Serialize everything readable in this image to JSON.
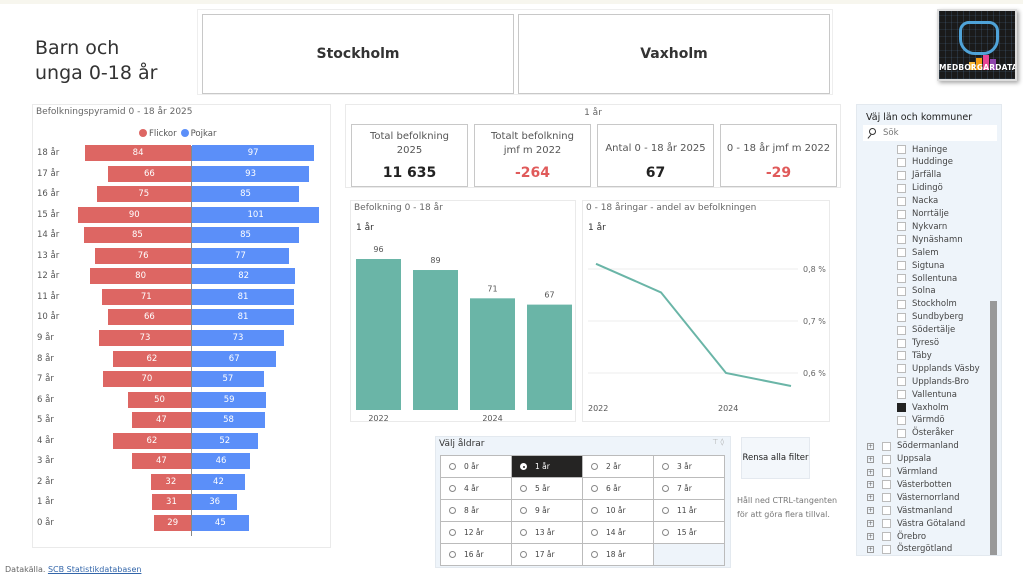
{
  "title": {
    "line1": "Barn och",
    "line2": "unga 0-18 år"
  },
  "municipalities_selected": [
    "Stockholm",
    "Vaxholm"
  ],
  "logo": {
    "text": "MEDBORGARDATA"
  },
  "pyramid": {
    "title": "Befolkningspyramid  0 - 18 år 2025",
    "legend": [
      {
        "label": "Flickor",
        "color": "#dd6663"
      },
      {
        "label": "Pojkar",
        "color": "#5b8ff9"
      }
    ],
    "rows": [
      {
        "age": "18 år",
        "girls": 84,
        "boys": 97
      },
      {
        "age": "17 år",
        "girls": 66,
        "boys": 93
      },
      {
        "age": "16 år",
        "girls": 75,
        "boys": 85
      },
      {
        "age": "15 år",
        "girls": 90,
        "boys": 101
      },
      {
        "age": "14 år",
        "girls": 85,
        "boys": 85
      },
      {
        "age": "13 år",
        "girls": 76,
        "boys": 77
      },
      {
        "age": "12 år",
        "girls": 80,
        "boys": 82
      },
      {
        "age": "11 år",
        "girls": 71,
        "boys": 81
      },
      {
        "age": "10 år",
        "girls": 66,
        "boys": 81
      },
      {
        "age": "9 år",
        "girls": 73,
        "boys": 73
      },
      {
        "age": "8 år",
        "girls": 62,
        "boys": 67
      },
      {
        "age": "7 år",
        "girls": 70,
        "boys": 57
      },
      {
        "age": "6 år",
        "girls": 50,
        "boys": 59
      },
      {
        "age": "5 år",
        "girls": 47,
        "boys": 58
      },
      {
        "age": "4 år",
        "girls": 62,
        "boys": 52
      },
      {
        "age": "3 år",
        "girls": 47,
        "boys": 46
      },
      {
        "age": "2 år",
        "girls": 32,
        "boys": 42
      },
      {
        "age": "1 år",
        "girls": 31,
        "boys": 36
      },
      {
        "age": "0 år",
        "girls": 29,
        "boys": 45
      }
    ]
  },
  "kpis": {
    "header": "1 år",
    "cards": [
      {
        "label1": "Total befolkning",
        "label2": "2025",
        "value": "11 635",
        "negative": false
      },
      {
        "label1": "Totalt befolkning",
        "label2": "jmf m 2022",
        "value": "-264",
        "negative": true
      },
      {
        "label1": "",
        "label2": "Antal 0 - 18 år 2025",
        "value": "67",
        "negative": false
      },
      {
        "label1": "",
        "label2": "0 - 18 år jmf m 2022",
        "value": "-29",
        "negative": true
      }
    ],
    "negative_color": "#e05a5a"
  },
  "chart_data": [
    {
      "type": "bar",
      "title": "Befolkning 0 - 18 år",
      "subtitle": "1 år",
      "categories": [
        "2022",
        "2023",
        "2024",
        "2025"
      ],
      "tick_labels": [
        "2022",
        "",
        "2024",
        ""
      ],
      "values": [
        96,
        89,
        71,
        67
      ],
      "ylim": [
        0,
        100
      ],
      "color": "#6ab5a7",
      "data_labels": true
    },
    {
      "type": "line",
      "title": "0 - 18 åringar - andel av befolkningen",
      "subtitle": "1 år",
      "x": [
        "2022",
        "2023",
        "2024",
        "2025"
      ],
      "tick_labels": [
        "2022",
        "",
        "2024",
        ""
      ],
      "values": [
        0.81,
        0.755,
        0.6,
        0.575
      ],
      "yticks": [
        "0,8 %",
        "0,7 %",
        "0,6 %"
      ],
      "ytick_values": [
        0.8,
        0.7,
        0.6
      ],
      "ylim": [
        0.53,
        0.88
      ],
      "color": "#6ab5a7",
      "grid": true,
      "yaxis_position": "right"
    }
  ],
  "age_slicer": {
    "title": "Välj åldrar",
    "options": [
      "0 år",
      "1 år",
      "2 år",
      "3 år",
      "4 år",
      "5 år",
      "6 år",
      "7 år",
      "8 år",
      "9 år",
      "10 år",
      "11 år",
      "12 år",
      "13 år",
      "14 år",
      "15 år",
      "16 år",
      "17 år",
      "18 år"
    ],
    "selected": "1 år"
  },
  "reset_button": "Rensa alla filter",
  "hint": "Håll ned CTRL-tangenten för att göra flera tillval.",
  "muni_slicer": {
    "title": "Väj län och kommuner",
    "search_placeholder": "Sök",
    "kommuner": [
      "Haninge",
      "Huddinge",
      "Järfälla",
      "Lidingö",
      "Nacka",
      "Norrtälje",
      "Nykvarn",
      "Nynäshamn",
      "Salem",
      "Sigtuna",
      "Sollentuna",
      "Solna",
      "Stockholm",
      "Sundbyberg",
      "Södertälje",
      "Tyresö",
      "Täby",
      "Upplands Väsby",
      "Upplands-Bro",
      "Vallentuna",
      "Vaxholm",
      "Värmdö",
      "Österåker"
    ],
    "checked": [
      "Vaxholm"
    ],
    "lan": [
      "Södermanland",
      "Uppsala",
      "Värmland",
      "Västerbotten",
      "Västernorrland",
      "Västmanland",
      "Västra Götaland",
      "Örebro",
      "Östergötland"
    ]
  },
  "footer": {
    "label": "Datakälla.",
    "link": "SCB Statistikdatabasen"
  }
}
